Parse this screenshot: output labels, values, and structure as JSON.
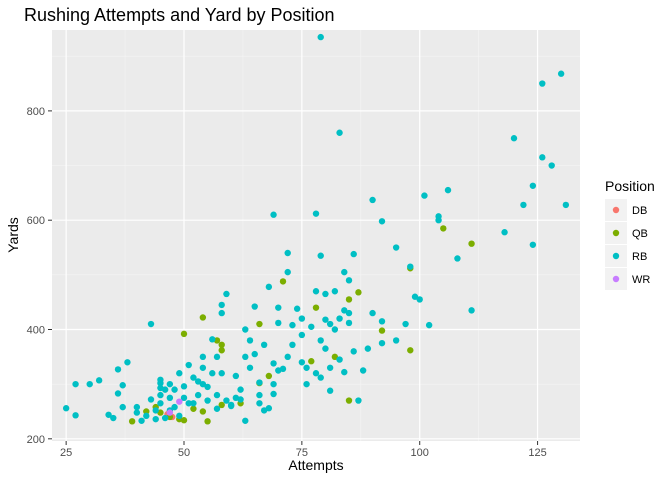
{
  "chart_data": {
    "type": "scatter",
    "title": "Rushing Attempts and Yard by Position",
    "xlabel": "Attempts",
    "ylabel": "Yards",
    "xlim": [
      22,
      134
    ],
    "ylim": [
      196,
      948
    ],
    "x_ticks": [
      25,
      50,
      75,
      100,
      125
    ],
    "y_ticks": [
      200,
      400,
      600,
      800
    ],
    "x_minor": [
      37.5,
      62.5,
      87.5,
      112.5
    ],
    "y_minor": [
      300,
      500,
      700,
      900
    ],
    "grid": true,
    "legend": {
      "title": "Position",
      "placement": "right",
      "entries": [
        {
          "name": "DB",
          "color": "#F8766D"
        },
        {
          "name": "QB",
          "color": "#7CAE00"
        },
        {
          "name": "RB",
          "color": "#00BFC4"
        },
        {
          "name": "WR",
          "color": "#C77CFF"
        }
      ]
    },
    "series": [
      {
        "name": "DB",
        "color": "#F8766D",
        "points": [
          [
            46.5,
            245
          ],
          [
            47.5,
            240
          ]
        ]
      },
      {
        "name": "QB",
        "color": "#7CAE00",
        "points": [
          [
            39,
            232
          ],
          [
            42,
            250
          ],
          [
            44,
            258
          ],
          [
            45,
            248
          ],
          [
            47,
            240
          ],
          [
            49,
            236
          ],
          [
            50,
            234
          ],
          [
            50,
            392
          ],
          [
            52,
            255
          ],
          [
            54,
            250
          ],
          [
            55,
            232
          ],
          [
            54,
            422
          ],
          [
            57,
            380
          ],
          [
            58,
            372
          ],
          [
            58,
            362
          ],
          [
            58,
            262
          ],
          [
            62,
            265
          ],
          [
            66,
            302
          ],
          [
            68,
            315
          ],
          [
            66,
            410
          ],
          [
            71,
            488
          ],
          [
            77,
            342
          ],
          [
            78,
            440
          ],
          [
            82,
            350
          ],
          [
            85,
            455
          ],
          [
            85,
            270
          ],
          [
            87,
            468
          ],
          [
            92,
            398
          ],
          [
            98,
            512
          ],
          [
            98,
            362
          ],
          [
            105,
            585
          ],
          [
            111,
            557
          ]
        ]
      },
      {
        "name": "RB",
        "color": "#00BFC4",
        "points": [
          [
            25,
            256
          ],
          [
            27,
            243
          ],
          [
            27,
            300
          ],
          [
            30,
            300
          ],
          [
            32,
            307
          ],
          [
            34,
            244
          ],
          [
            35,
            238
          ],
          [
            36,
            327
          ],
          [
            36,
            283
          ],
          [
            37,
            258
          ],
          [
            37,
            298
          ],
          [
            38,
            340
          ],
          [
            40,
            248
          ],
          [
            40,
            258
          ],
          [
            41,
            233
          ],
          [
            42,
            242
          ],
          [
            43,
            272
          ],
          [
            43,
            410
          ],
          [
            44,
            252
          ],
          [
            44,
            236
          ],
          [
            45,
            293
          ],
          [
            45,
            302
          ],
          [
            45,
            308
          ],
          [
            45,
            280
          ],
          [
            45,
            265
          ],
          [
            46,
            238
          ],
          [
            46,
            290
          ],
          [
            47,
            252
          ],
          [
            47,
            275
          ],
          [
            47,
            300
          ],
          [
            48,
            290
          ],
          [
            48,
            258
          ],
          [
            49,
            242
          ],
          [
            49,
            320
          ],
          [
            50,
            296
          ],
          [
            50,
            275
          ],
          [
            51,
            265
          ],
          [
            51,
            335
          ],
          [
            52,
            312
          ],
          [
            52,
            265
          ],
          [
            53,
            305
          ],
          [
            53,
            280
          ],
          [
            54,
            300
          ],
          [
            54,
            330
          ],
          [
            54,
            350
          ],
          [
            55,
            270
          ],
          [
            55,
            295
          ],
          [
            56,
            320
          ],
          [
            56,
            382
          ],
          [
            57,
            255
          ],
          [
            57,
            280
          ],
          [
            57,
            350
          ],
          [
            58,
            320
          ],
          [
            58,
            445
          ],
          [
            58,
            430
          ],
          [
            59,
            465
          ],
          [
            59,
            270
          ],
          [
            60,
            260
          ],
          [
            60,
            262
          ],
          [
            61,
            275
          ],
          [
            61,
            315
          ],
          [
            62,
            272
          ],
          [
            62,
            290
          ],
          [
            63,
            233
          ],
          [
            63,
            350
          ],
          [
            63,
            400
          ],
          [
            64,
            380
          ],
          [
            64,
            330
          ],
          [
            65,
            442
          ],
          [
            65,
            355
          ],
          [
            66,
            265
          ],
          [
            66,
            280
          ],
          [
            66,
            303
          ],
          [
            67,
            252
          ],
          [
            67,
            372
          ],
          [
            68,
            256
          ],
          [
            68,
            478
          ],
          [
            69,
            610
          ],
          [
            69,
            300
          ],
          [
            69,
            282
          ],
          [
            69,
            338
          ],
          [
            70,
            325
          ],
          [
            70,
            412
          ],
          [
            70,
            440
          ],
          [
            71,
            328
          ],
          [
            72,
            540
          ],
          [
            72,
            505
          ],
          [
            72,
            350
          ],
          [
            73,
            372
          ],
          [
            73,
            408
          ],
          [
            74,
            438
          ],
          [
            75,
            340
          ],
          [
            75,
            420
          ],
          [
            75,
            390
          ],
          [
            76,
            300
          ],
          [
            76,
            330
          ],
          [
            77,
            405
          ],
          [
            78,
            612
          ],
          [
            78,
            470
          ],
          [
            78,
            320
          ],
          [
            79,
            935
          ],
          [
            79,
            312
          ],
          [
            79,
            535
          ],
          [
            79,
            380
          ],
          [
            80,
            365
          ],
          [
            80,
            418
          ],
          [
            80,
            465
          ],
          [
            81,
            288
          ],
          [
            81,
            330
          ],
          [
            81,
            410
          ],
          [
            82,
            400
          ],
          [
            82,
            470
          ],
          [
            83,
            760
          ],
          [
            83,
            420
          ],
          [
            83,
            345
          ],
          [
            84,
            505
          ],
          [
            84,
            435
          ],
          [
            84,
            322
          ],
          [
            85,
            490
          ],
          [
            85,
            430
          ],
          [
            85,
            412
          ],
          [
            86,
            538
          ],
          [
            86,
            360
          ],
          [
            87,
            270
          ],
          [
            88,
            325
          ],
          [
            89,
            365
          ],
          [
            90,
            637
          ],
          [
            90,
            430
          ],
          [
            92,
            598
          ],
          [
            92,
            415
          ],
          [
            92,
            375
          ],
          [
            95,
            550
          ],
          [
            95,
            380
          ],
          [
            97,
            410
          ],
          [
            98,
            515
          ],
          [
            99,
            460
          ],
          [
            100,
            455
          ],
          [
            101,
            645
          ],
          [
            102,
            408
          ],
          [
            104,
            600
          ],
          [
            104,
            607
          ],
          [
            106,
            655
          ],
          [
            108,
            530
          ],
          [
            111,
            435
          ],
          [
            118,
            578
          ],
          [
            120,
            750
          ],
          [
            122,
            628
          ],
          [
            124,
            663
          ],
          [
            124,
            555
          ],
          [
            126,
            850
          ],
          [
            126,
            715
          ],
          [
            128,
            700
          ],
          [
            130,
            868
          ],
          [
            131,
            628
          ]
        ]
      },
      {
        "name": "WR",
        "color": "#C77CFF",
        "points": [
          [
            47,
            248
          ],
          [
            49,
            268
          ]
        ]
      }
    ]
  }
}
